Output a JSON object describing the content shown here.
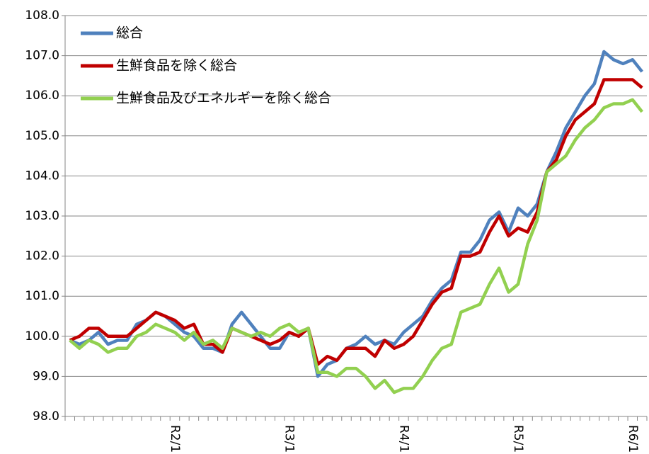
{
  "chart_data": {
    "type": "line",
    "categories": [
      null,
      null,
      null,
      null,
      null,
      null,
      null,
      null,
      null,
      null,
      null,
      "R2/1",
      null,
      null,
      null,
      null,
      null,
      null,
      null,
      null,
      null,
      null,
      null,
      "R3/1",
      null,
      null,
      null,
      null,
      null,
      null,
      null,
      null,
      null,
      null,
      null,
      "R4/1",
      null,
      null,
      null,
      null,
      null,
      null,
      null,
      null,
      null,
      null,
      null,
      "R5/1",
      null,
      null,
      null,
      null,
      null,
      null,
      null,
      null,
      null,
      null,
      null,
      "R6/1",
      null
    ],
    "series": [
      {
        "name": "総合",
        "color": "#4f81bd",
        "values": [
          99.9,
          99.8,
          99.9,
          100.1,
          99.8,
          99.9,
          99.9,
          100.3,
          100.4,
          100.6,
          100.5,
          100.3,
          100.1,
          100.0,
          99.7,
          99.7,
          99.6,
          100.3,
          100.6,
          100.3,
          100.0,
          99.7,
          99.7,
          100.1,
          100.0,
          100.2,
          99.0,
          99.3,
          99.4,
          99.7,
          99.8,
          100.0,
          99.8,
          99.9,
          99.8,
          100.1,
          100.3,
          100.5,
          100.9,
          101.2,
          101.4,
          102.1,
          102.1,
          102.4,
          102.9,
          103.1,
          102.6,
          103.2,
          103.0,
          103.3,
          104.1,
          104.6,
          105.2,
          105.6,
          106.0,
          106.3,
          107.1,
          106.9,
          106.8,
          106.9,
          106.6
        ]
      },
      {
        "name": "生鮮食品を除く総合",
        "color": "#c00000",
        "values": [
          99.9,
          100.0,
          100.2,
          100.2,
          100.0,
          100.0,
          100.0,
          100.2,
          100.4,
          100.6,
          100.5,
          100.4,
          100.2,
          100.3,
          99.8,
          99.8,
          99.6,
          100.2,
          100.1,
          100.0,
          99.9,
          99.8,
          99.9,
          100.1,
          100.0,
          100.2,
          99.3,
          99.5,
          99.4,
          99.7,
          99.7,
          99.7,
          99.5,
          99.9,
          99.7,
          99.8,
          100.0,
          100.4,
          100.8,
          101.1,
          101.2,
          102.0,
          102.0,
          102.1,
          102.6,
          103.0,
          102.5,
          102.7,
          102.6,
          103.1,
          104.1,
          104.4,
          105.0,
          105.4,
          105.6,
          105.8,
          106.4,
          106.4,
          106.4,
          106.4,
          106.2
        ]
      },
      {
        "name": "生鮮食品及びエネルギーを除く総合",
        "color": "#92d050",
        "values": [
          99.9,
          99.7,
          99.9,
          99.8,
          99.6,
          99.7,
          99.7,
          100.0,
          100.1,
          100.3,
          100.2,
          100.1,
          99.9,
          100.1,
          99.8,
          99.9,
          99.7,
          100.2,
          100.1,
          100.0,
          100.1,
          100.0,
          100.2,
          100.3,
          100.1,
          100.2,
          99.1,
          99.1,
          99.0,
          99.2,
          99.2,
          99.0,
          98.7,
          98.9,
          98.6,
          98.7,
          98.7,
          99.0,
          99.4,
          99.7,
          99.8,
          100.6,
          100.7,
          100.8,
          101.3,
          101.7,
          101.1,
          101.3,
          102.3,
          102.9,
          104.1,
          104.3,
          104.5,
          104.9,
          105.2,
          105.4,
          105.7,
          105.8,
          105.8,
          105.9,
          105.6
        ]
      }
    ],
    "ylim": [
      98,
      108
    ],
    "yticks": [
      {
        "value": 98,
        "label": "98.0"
      },
      {
        "value": 99,
        "label": "99.0"
      },
      {
        "value": 100,
        "label": "100.0"
      },
      {
        "value": 101,
        "label": "101.0"
      },
      {
        "value": 102,
        "label": "102.0"
      },
      {
        "value": 103,
        "label": "103.0"
      },
      {
        "value": 104,
        "label": "104.0"
      },
      {
        "value": 105,
        "label": "105.0"
      },
      {
        "value": 106,
        "label": "106.0"
      },
      {
        "value": 107,
        "label": "107.0"
      },
      {
        "value": 108,
        "label": "108.0"
      }
    ],
    "grid": true,
    "legend": "upper-left"
  }
}
